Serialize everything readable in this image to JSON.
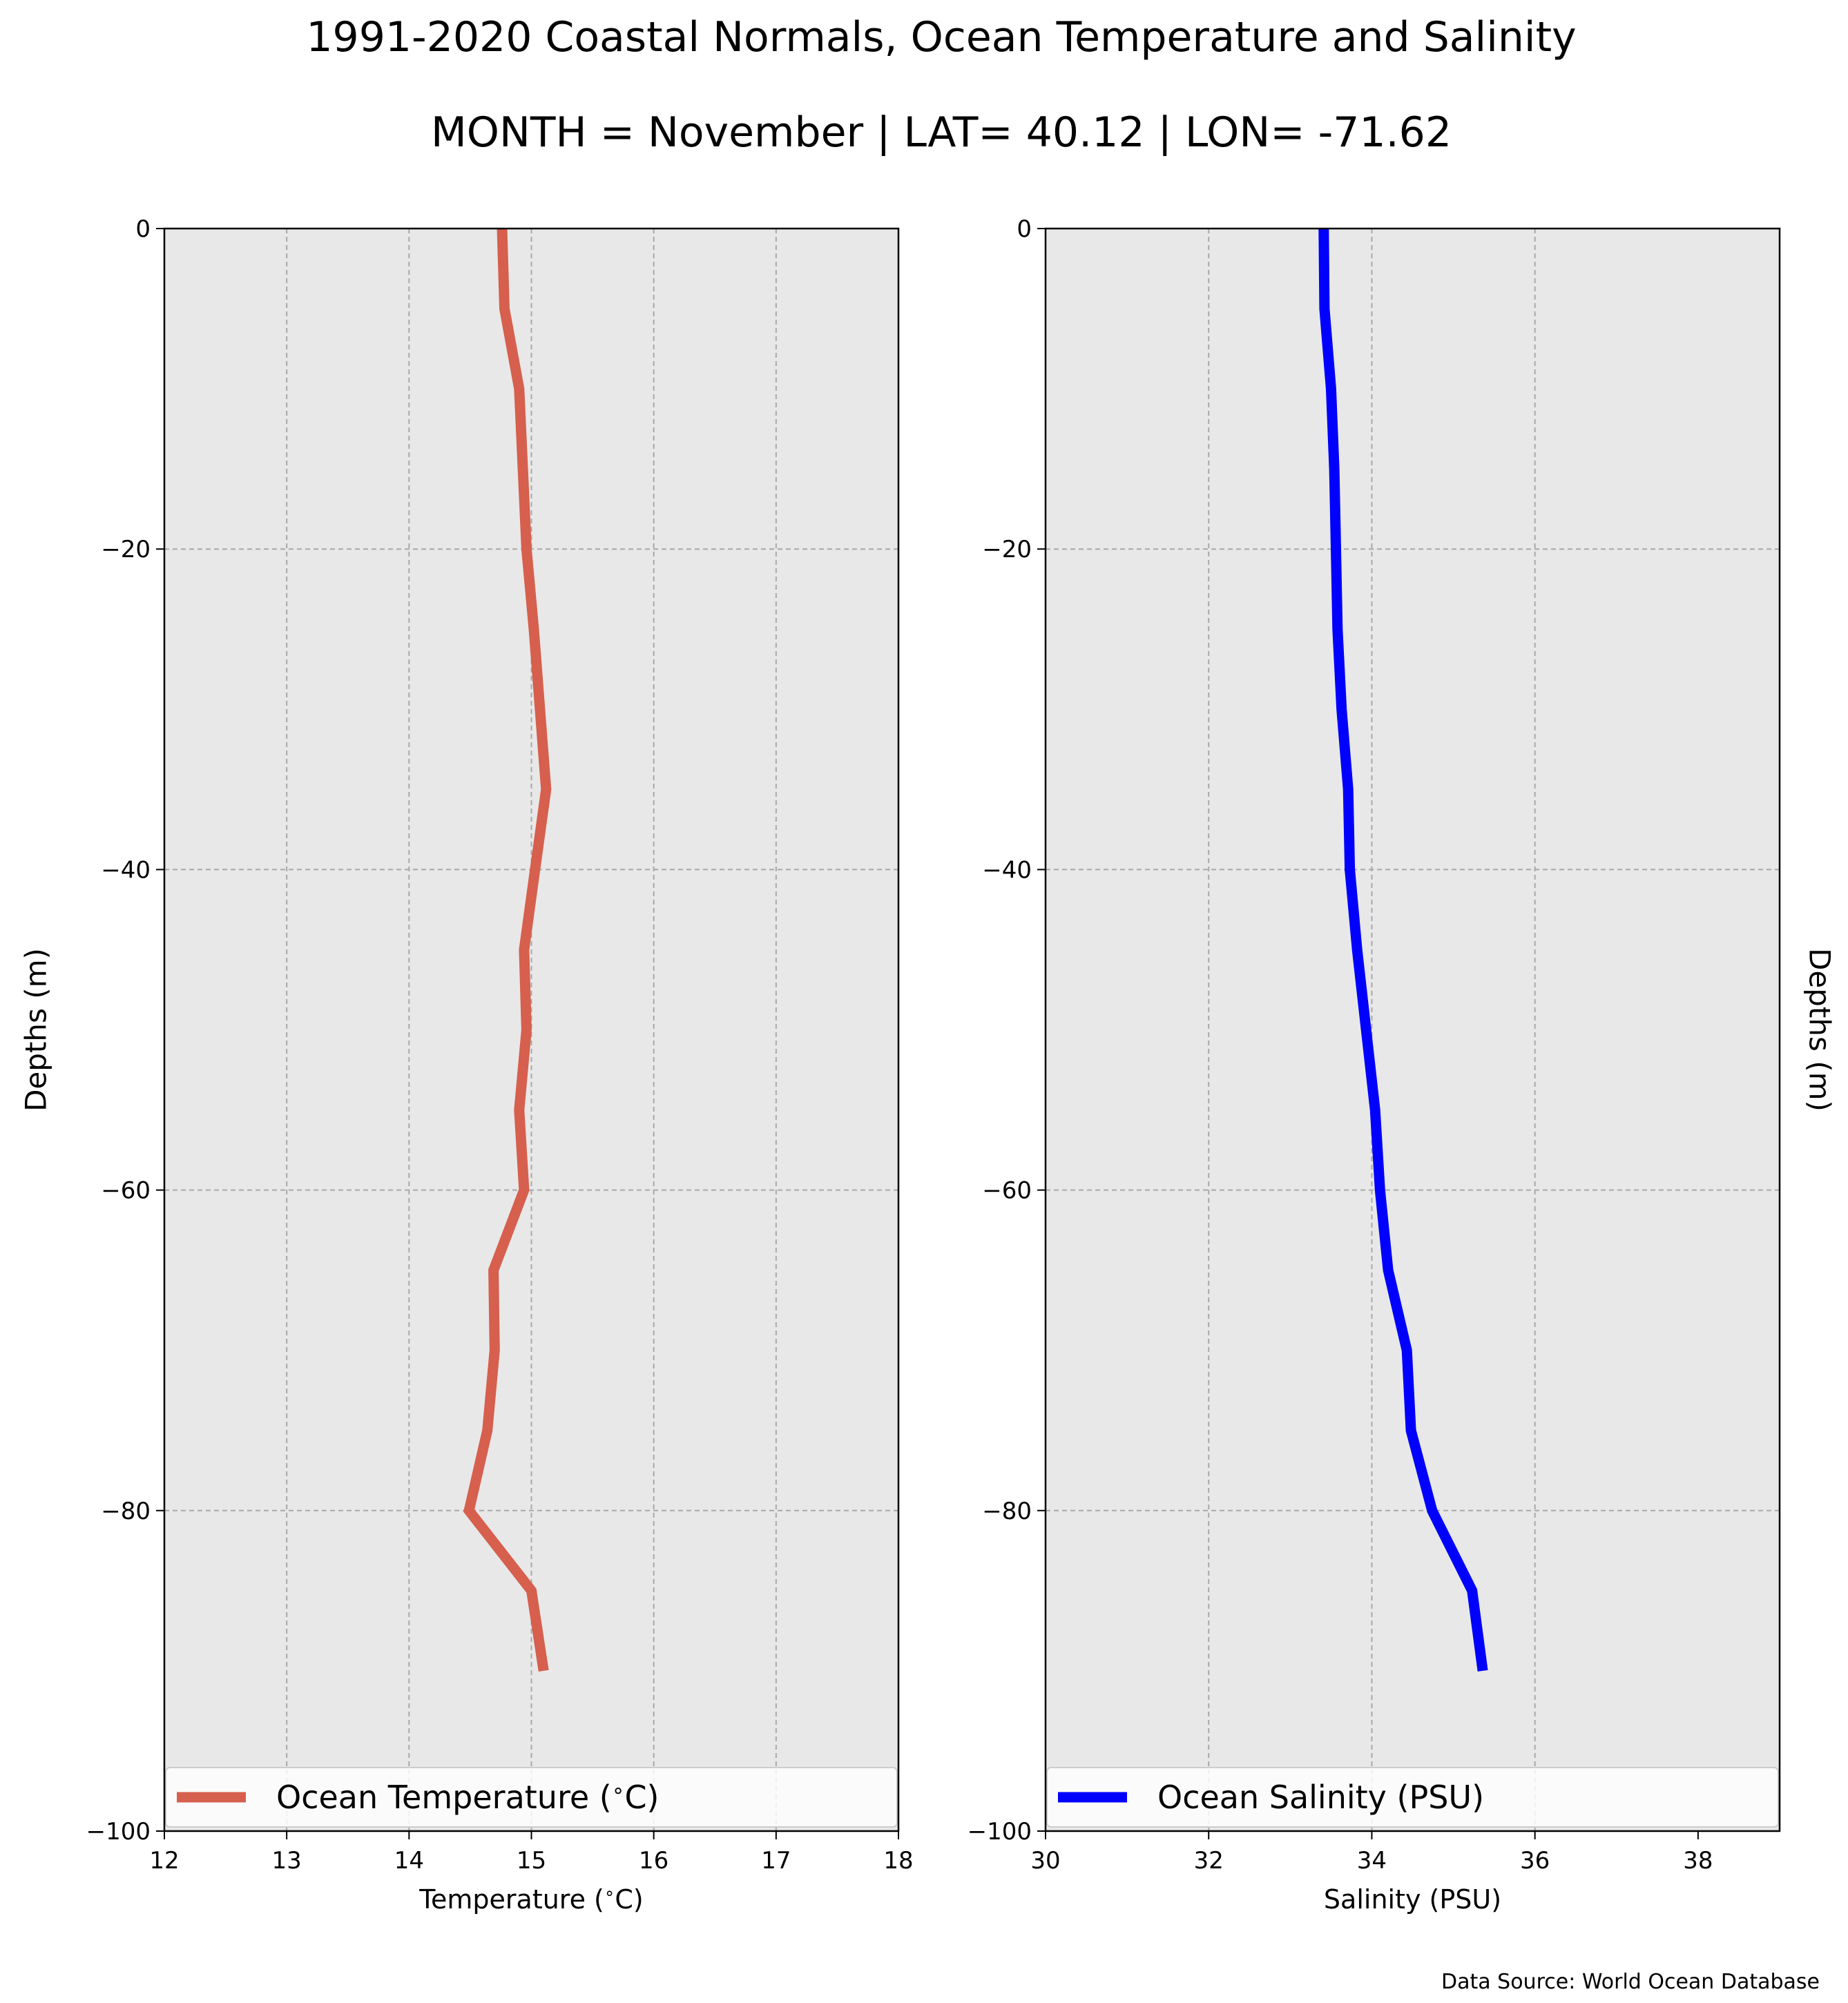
{
  "figure": {
    "title": "1991-2020 Coastal Normals, Ocean Temperature and Salinity",
    "subtitle": "MONTH = November | LAT= 40.12 | LON= -71.62",
    "source": "Data Source: World Ocean Database",
    "background_color": "#ffffff",
    "panel_color": "#e8e8e8"
  },
  "chart_data": [
    {
      "type": "line",
      "orientation": "vertical-profile",
      "xlabel": "Temperature ($^\\circ$C)",
      "ylabel": "Depths (m)",
      "xlim": [
        12,
        18
      ],
      "ylim": [
        -100,
        0
      ],
      "xticks": [
        12,
        13,
        14,
        15,
        16,
        17,
        18
      ],
      "xtick_labels": [
        "12",
        "13",
        "14",
        "15",
        "16",
        "17",
        "18"
      ],
      "yticks": [
        0,
        -20,
        -40,
        -60,
        -80,
        -100
      ],
      "ytick_labels": [
        "0",
        "−20",
        "−40",
        "−60",
        "−80",
        "−100"
      ],
      "grid": true,
      "legend_position": "bottom",
      "ylabel_side": "left",
      "series": [
        {
          "name": "Ocean Temperature ($^\\circ$C)",
          "color": "#d65f4e",
          "x": [
            14.76,
            14.78,
            14.9,
            14.93,
            14.96,
            15.02,
            15.07,
            15.12,
            15.03,
            14.94,
            14.96,
            14.9,
            14.94,
            14.69,
            14.7,
            14.64,
            14.49,
            15.0,
            15.1
          ],
          "y": [
            0,
            -5,
            -10,
            -15,
            -20,
            -25,
            -30,
            -35,
            -40,
            -45,
            -50,
            -55,
            -60,
            -65,
            -70,
            -75,
            -80,
            -85,
            -90
          ]
        }
      ]
    },
    {
      "type": "line",
      "orientation": "vertical-profile",
      "xlabel": "Salinity (PSU)",
      "ylabel": "Depths (m)",
      "xlim": [
        30,
        39
      ],
      "ylim": [
        -100,
        0
      ],
      "xticks": [
        30,
        32,
        34,
        36,
        38
      ],
      "xtick_labels": [
        "30",
        "32",
        "34",
        "36",
        "38"
      ],
      "yticks": [
        0,
        -20,
        -40,
        -60,
        -80,
        -100
      ],
      "ytick_labels": [
        "0",
        "−20",
        "−40",
        "−60",
        "−80",
        "−100"
      ],
      "grid": true,
      "legend_position": "bottom",
      "ylabel_side": "right",
      "series": [
        {
          "name": "Ocean Salinity (PSU)",
          "color": "#0000ff",
          "x": [
            33.41,
            33.42,
            33.5,
            33.54,
            33.56,
            33.58,
            33.63,
            33.71,
            33.73,
            33.82,
            33.93,
            34.04,
            34.1,
            34.2,
            34.43,
            34.48,
            34.74,
            35.23,
            35.36
          ],
          "y": [
            0,
            -5,
            -10,
            -15,
            -20,
            -25,
            -30,
            -35,
            -40,
            -45,
            -50,
            -55,
            -60,
            -65,
            -70,
            -75,
            -80,
            -85,
            -90
          ]
        }
      ]
    }
  ]
}
